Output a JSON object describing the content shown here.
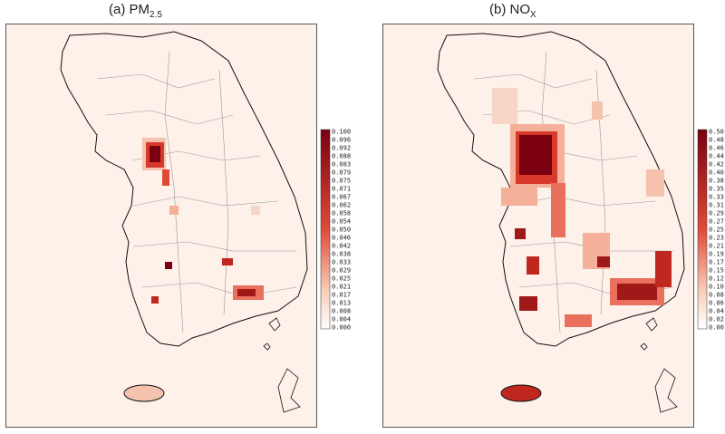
{
  "panels": [
    {
      "title_main": "(a) PM",
      "title_sub": "2.5",
      "colorbar_labels": [
        "0.100",
        "0.096",
        "0.092",
        "0.088",
        "0.083",
        "0.079",
        "0.075",
        "0.071",
        "0.067",
        "0.062",
        "0.058",
        "0.054",
        "0.050",
        "0.046",
        "0.042",
        "0.038",
        "0.033",
        "0.029",
        "0.025",
        "0.021",
        "0.017",
        "0.013",
        "0.008",
        "0.004",
        "0.000"
      ]
    },
    {
      "title_main": "(b) NO",
      "title_sub": "X",
      "colorbar_labels": [
        "0.50",
        "0.48",
        "0.46",
        "0.44",
        "0.42",
        "0.40",
        "0.38",
        "0.35",
        "0.33",
        "0.31",
        "0.29",
        "0.27",
        "0.25",
        "0.23",
        "0.21",
        "0.19",
        "0.17",
        "0.15",
        "0.12",
        "0.10",
        "0.08",
        "0.06",
        "0.04",
        "0.02",
        "0.00"
      ]
    }
  ],
  "colors": {
    "background": "#fdf1ea",
    "low": "#f7cbb5",
    "mid": "#e04a38",
    "high": "#7a0010",
    "coastline": "#111111",
    "boundary": "#999999"
  }
}
